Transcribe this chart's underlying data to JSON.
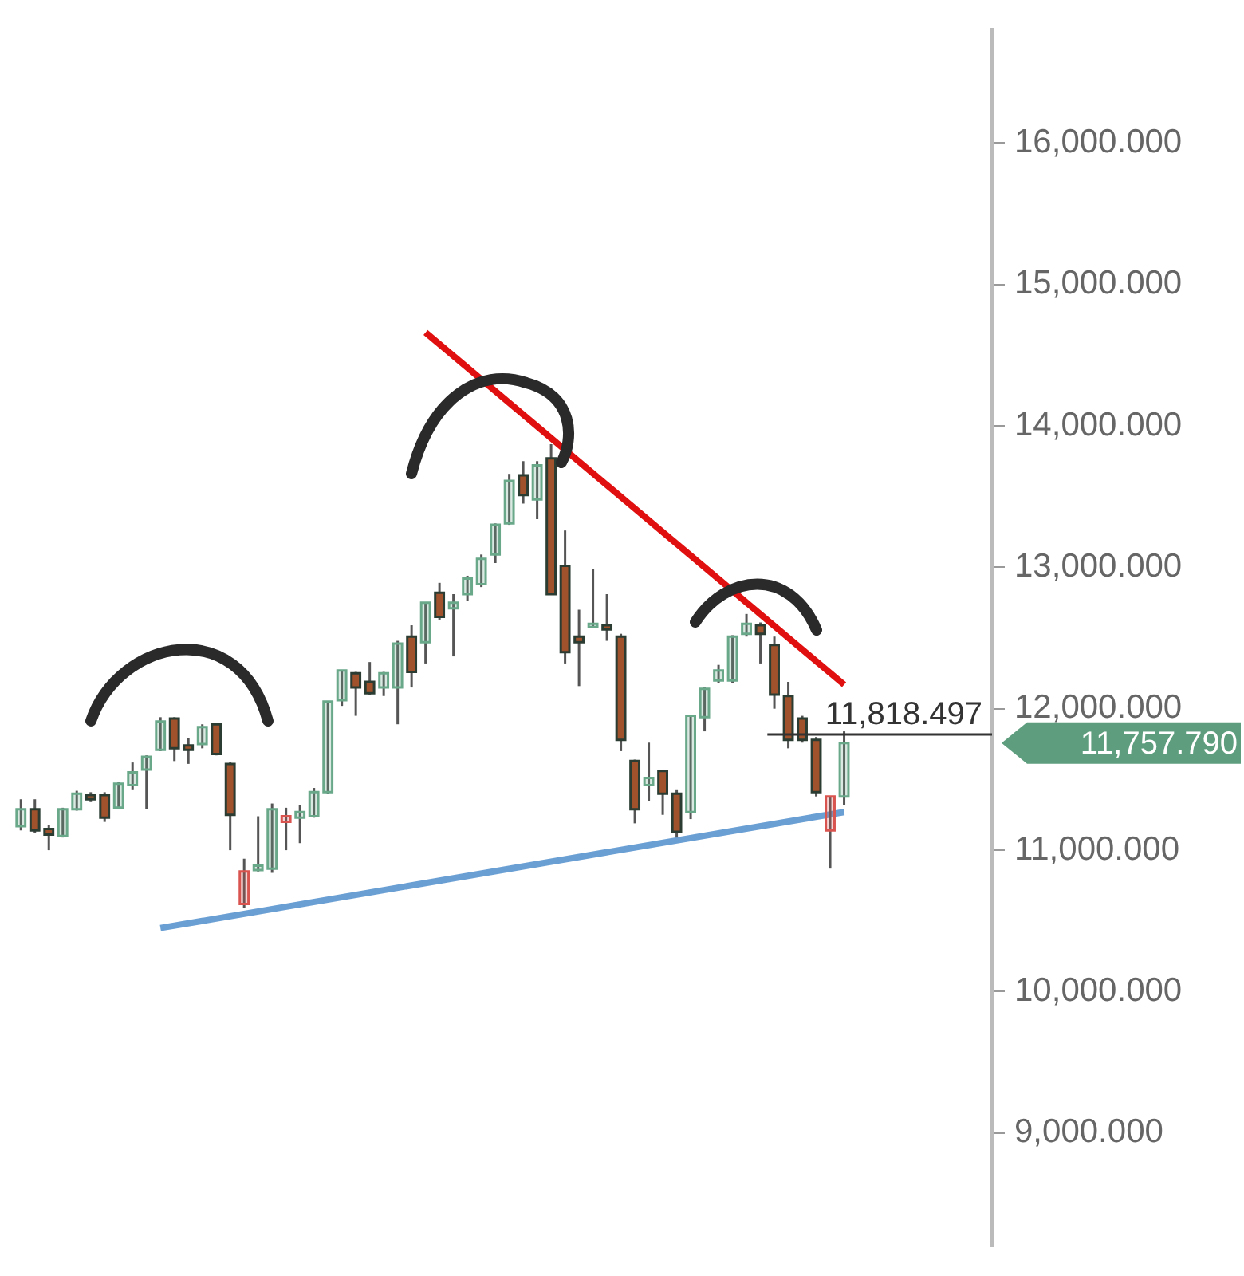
{
  "chart_data": {
    "type": "candlestick",
    "categories": [
      null,
      null,
      null,
      null,
      null,
      null,
      null,
      null,
      null,
      null,
      null,
      null,
      null,
      null,
      null,
      null,
      null,
      null,
      null,
      null,
      null,
      null,
      null,
      null,
      null,
      null,
      null,
      null,
      null,
      null,
      null,
      null,
      null,
      null,
      null,
      null,
      null,
      null,
      null,
      null,
      null,
      null,
      null,
      null,
      null,
      null,
      null,
      null,
      null,
      null,
      null,
      null,
      null,
      null,
      null,
      null,
      null,
      null,
      null,
      null
    ],
    "ohlc": [
      [
        11170,
        11360,
        11140,
        11290
      ],
      [
        11290,
        11360,
        11120,
        11140
      ],
      [
        11150,
        11180,
        11000,
        11110
      ],
      [
        11100,
        11300,
        11090,
        11290
      ],
      [
        11290,
        11420,
        11280,
        11400
      ],
      [
        11390,
        11410,
        11340,
        11360
      ],
      [
        11390,
        11410,
        11200,
        11230
      ],
      [
        11300,
        11480,
        11290,
        11470
      ],
      [
        11460,
        11620,
        11430,
        11550
      ],
      [
        11570,
        11670,
        11290,
        11660
      ],
      [
        11710,
        11940,
        11700,
        11910
      ],
      [
        11930,
        11940,
        11630,
        11720
      ],
      [
        11740,
        11790,
        11610,
        11710
      ],
      [
        11750,
        11890,
        11720,
        11870
      ],
      [
        11890,
        11900,
        11670,
        11680
      ],
      [
        11610,
        11620,
        11000,
        11250
      ],
      [
        10620,
        10940,
        10590,
        10850
      ],
      [
        10860,
        11240,
        10850,
        10890
      ],
      [
        10870,
        11330,
        10840,
        11290
      ],
      [
        11200,
        11300,
        11000,
        11240
      ],
      [
        11230,
        11320,
        11050,
        11270
      ],
      [
        11240,
        11440,
        11230,
        11410
      ],
      [
        11410,
        12050,
        11400,
        12050
      ],
      [
        12060,
        12270,
        12020,
        12270
      ],
      [
        12250,
        12260,
        11950,
        12150
      ],
      [
        12190,
        12330,
        12100,
        12110
      ],
      [
        12150,
        12260,
        12090,
        12250
      ],
      [
        12150,
        12480,
        11890,
        12460
      ],
      [
        12510,
        12590,
        12150,
        12260
      ],
      [
        12470,
        12750,
        12320,
        12750
      ],
      [
        12820,
        12890,
        12630,
        12650
      ],
      [
        12710,
        12810,
        12370,
        12750
      ],
      [
        12810,
        12940,
        12760,
        12920
      ],
      [
        12880,
        13090,
        12860,
        13060
      ],
      [
        13090,
        13310,
        13030,
        13300
      ],
      [
        13310,
        13660,
        13300,
        13610
      ],
      [
        13650,
        13750,
        13450,
        13510
      ],
      [
        13480,
        13750,
        13340,
        13720
      ],
      [
        13770,
        13870,
        12810,
        12810
      ],
      [
        13010,
        13260,
        12320,
        12400
      ],
      [
        12510,
        12700,
        12160,
        12470
      ],
      [
        12580,
        12990,
        12570,
        12600
      ],
      [
        12590,
        12810,
        12480,
        12560
      ],
      [
        12510,
        12530,
        11700,
        11780
      ],
      [
        11630,
        11640,
        11190,
        11290
      ],
      [
        11460,
        11760,
        11350,
        11510
      ],
      [
        11560,
        11570,
        11250,
        11400
      ],
      [
        11400,
        11430,
        11090,
        11130
      ],
      [
        11270,
        11950,
        11220,
        11950
      ],
      [
        11940,
        12150,
        11840,
        12140
      ],
      [
        12200,
        12310,
        12180,
        12270
      ],
      [
        12200,
        12520,
        12180,
        12510
      ],
      [
        12530,
        12670,
        12510,
        12600
      ],
      [
        12590,
        12610,
        12320,
        12530
      ],
      [
        12450,
        12510,
        12000,
        12100
      ],
      [
        12090,
        12190,
        11720,
        11780
      ],
      [
        11930,
        11950,
        11760,
        11780
      ],
      [
        11780,
        11800,
        11380,
        11410
      ],
      [
        11140,
        11380,
        10870,
        11380
      ],
      [
        11380,
        11840,
        11320,
        11757.79
      ]
    ],
    "colors": [
      "#6aa88a",
      "#a0522d",
      "#a0522d",
      "#6aa88a",
      "#6aa88a",
      "#a0522d",
      "#a0522d",
      "#6aa88a",
      "#6aa88a",
      "#6aa88a",
      "#6aa88a",
      "#a0522d",
      "#a0522d",
      "#6aa88a",
      "#a0522d",
      "#a0522d",
      "#d9534f",
      "#6aa88a",
      "#6aa88a",
      "#d9534f",
      "#6aa88a",
      "#6aa88a",
      "#6aa88a",
      "#6aa88a",
      "#a0522d",
      "#a0522d",
      "#6aa88a",
      "#6aa88a",
      "#a0522d",
      "#6aa88a",
      "#a0522d",
      "#6aa88a",
      "#6aa88a",
      "#6aa88a",
      "#6aa88a",
      "#6aa88a",
      "#a0522d",
      "#6aa88a",
      "#a0522d",
      "#a0522d",
      "#a0522d",
      "#6aa88a",
      "#a0522d",
      "#a0522d",
      "#a0522d",
      "#6aa88a",
      "#a0522d",
      "#a0522d",
      "#6aa88a",
      "#6aa88a",
      "#6aa88a",
      "#6aa88a",
      "#6aa88a",
      "#a0522d",
      "#a0522d",
      "#a0522d",
      "#a0522d",
      "#a0522d",
      "#d9534f",
      "#6aa88a"
    ],
    "series": [
      {
        "type": "line",
        "color": "#e01010",
        "values": [
          null,
          null,
          null,
          null,
          null,
          null,
          null,
          null,
          null,
          null,
          null,
          null,
          null,
          null,
          null,
          null,
          null,
          null,
          null,
          null,
          null,
          null,
          null,
          null,
          null,
          null,
          null,
          null,
          null,
          14660,
          null,
          null,
          null,
          null,
          null,
          null,
          null,
          null,
          null,
          null,
          null,
          null,
          null,
          null,
          null,
          null,
          null,
          null,
          null,
          null,
          null,
          null,
          null,
          null,
          null,
          null,
          null,
          null,
          null,
          12170
        ]
      },
      {
        "type": "line",
        "color": "#6a9fd4",
        "values": [
          null,
          null,
          null,
          null,
          null,
          null,
          null,
          null,
          null,
          null,
          10450,
          null,
          null,
          null,
          null,
          null,
          null,
          null,
          null,
          null,
          null,
          null,
          null,
          null,
          null,
          null,
          null,
          null,
          null,
          null,
          null,
          null,
          null,
          null,
          null,
          null,
          null,
          null,
          null,
          null,
          null,
          null,
          null,
          null,
          null,
          null,
          null,
          null,
          null,
          null,
          null,
          null,
          null,
          null,
          null,
          null,
          null,
          null,
          null,
          11270
        ]
      }
    ],
    "ylim": [
      8200,
      16800
    ],
    "yticks": [
      {
        "value": 9000,
        "label": "9,000.000"
      },
      {
        "value": 10000,
        "label": "10,000.000"
      },
      {
        "value": 11000,
        "label": "11,000.000"
      },
      {
        "value": 12000,
        "label": "12,000.000"
      },
      {
        "value": 13000,
        "label": "13,000.000"
      },
      {
        "value": 14000,
        "label": "14,000.000"
      },
      {
        "value": 15000,
        "label": "15,000.000"
      },
      {
        "value": 16000,
        "label": "16,000.000"
      }
    ],
    "tick_labels": "y",
    "ref_lines": [
      {
        "axis": "y",
        "value": 11818.497,
        "label": "11,818.497",
        "color": "#333333"
      }
    ],
    "annotations": [
      "11,757.790"
    ]
  }
}
